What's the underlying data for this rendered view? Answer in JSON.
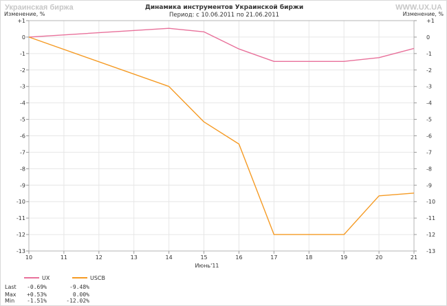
{
  "header": {
    "brand_left": "Украинская биржа",
    "brand_right": "WWW.UX.UA",
    "title": "Динамика инструментов Украинской биржи",
    "subtitle": "Период: с 10.06.2011 по 21.06.2011"
  },
  "chart_data": {
    "type": "line",
    "title": "Динамика инструментов Украинской биржи",
    "subtitle": "Период: с 10.06.2011 по 21.06.2011",
    "ylabel": "Изменение, %",
    "xlabel": "Июнь'11",
    "x_ticks": [
      "10",
      "11",
      "12",
      "13",
      "14",
      "15",
      "16",
      "17",
      "18",
      "19",
      "20",
      "21"
    ],
    "y_ticks": [
      "+1",
      "0",
      "-1",
      "-2",
      "-3",
      "-4",
      "-5",
      "-6",
      "-7",
      "-8",
      "-9",
      "-10",
      "-11",
      "-12",
      "-13"
    ],
    "ylim": [
      -13,
      1
    ],
    "grid": true,
    "series": [
      {
        "name": "UX",
        "color": "#e8709a",
        "points": [
          [
            10,
            0
          ],
          [
            14,
            0.53
          ],
          [
            15,
            0.32
          ],
          [
            16,
            -0.72
          ],
          [
            17,
            -1.48
          ],
          [
            19,
            -1.48
          ],
          [
            20,
            -1.25
          ],
          [
            21,
            -0.69
          ]
        ]
      },
      {
        "name": "USCB",
        "color": "#f59a23",
        "points": [
          [
            10,
            0
          ],
          [
            14,
            -3.0
          ],
          [
            15,
            -5.15
          ],
          [
            16,
            -6.5
          ],
          [
            17,
            -12.0
          ],
          [
            19,
            -12.0
          ],
          [
            20,
            -9.65
          ],
          [
            21,
            -9.48
          ]
        ]
      }
    ],
    "legend": [
      {
        "name": "UX",
        "color": "#e8709a"
      },
      {
        "name": "USCB",
        "color": "#f59a23"
      }
    ],
    "stats": {
      "labels": [
        "Last",
        "Max",
        "Min"
      ],
      "columns": [
        [
          "-0.69%",
          "+0.53%",
          "-1.51%"
        ],
        [
          "-9.48%",
          "0.00%",
          "-12.02%"
        ]
      ]
    }
  }
}
